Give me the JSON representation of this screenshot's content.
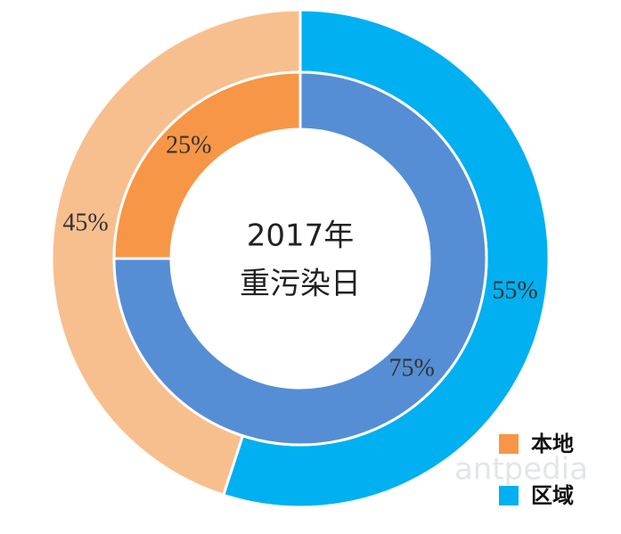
{
  "chart_data": {
    "type": "donut",
    "center_text": [
      "2017年",
      "重污染日"
    ],
    "categories": [
      "本地",
      "区域"
    ],
    "legend_colors": [
      "#f79646",
      "#00b0f0"
    ],
    "rings": [
      {
        "values": [
          45,
          55
        ],
        "value_labels": [
          "45%",
          "55%"
        ],
        "colors": [
          "#f8bf8e",
          "#00b0f0"
        ]
      },
      {
        "values": [
          25,
          75
        ],
        "value_labels": [
          "25%",
          "75%"
        ],
        "colors": [
          "#f79646",
          "#558ed5"
        ]
      }
    ],
    "legend_position": "bottom-right",
    "watermark": "antpedia"
  }
}
